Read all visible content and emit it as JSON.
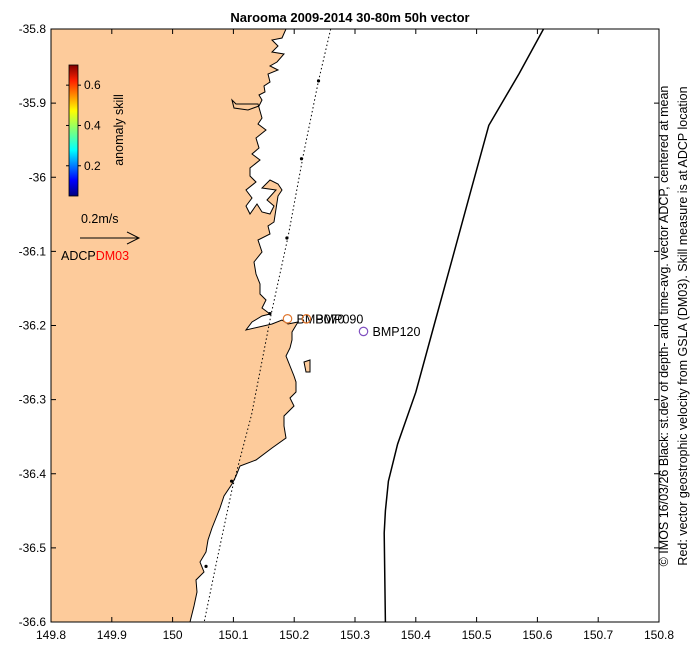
{
  "chart_data": {
    "type": "map",
    "title": "Narooma 2009-2014 30-80m 50h vector",
    "x_ticks": [
      "149.8",
      "149.9",
      "150",
      "150.1",
      "150.2",
      "150.3",
      "150.4",
      "150.5",
      "150.6",
      "150.7",
      "150.8"
    ],
    "y_ticks": [
      "-35.8",
      "-35.9",
      "-36",
      "-36.1",
      "-36.2",
      "-36.3",
      "-36.4",
      "-36.5",
      "-36.6"
    ],
    "xlim": [
      149.8,
      150.8
    ],
    "ylim": [
      -36.6,
      -35.8
    ],
    "colorbar": {
      "label": "anomaly skill",
      "ticks": [
        "0.6",
        "0.4",
        "0.2"
      ],
      "tick_values": [
        0.6,
        0.4,
        0.2
      ],
      "range": [
        0.05,
        0.7
      ]
    },
    "scale_arrow": {
      "label": "0.2m/s"
    },
    "legend": {
      "adcp": "ADCP",
      "dm03": "DM03",
      "dm03_color": "#ff0000"
    },
    "stations": [
      {
        "name": "BMP070",
        "lon": 150.189,
        "lat": -36.191,
        "color": "#e07830"
      },
      {
        "name": "BMP090",
        "lon": 150.22,
        "lat": -36.191,
        "color": "#e07830"
      },
      {
        "name": "BMP120",
        "lon": 150.314,
        "lat": -36.208,
        "color": "#8050c0"
      }
    ],
    "side_text": [
      "© IMOS 16/03/26 Black: st.dev of depth- and time-avg. vector ADCP, centered at mean",
      "Red: vector geostrophic velocity from GSLA (DM03). Skill measure is at ADCP location"
    ],
    "land_color": "#fdcb9b",
    "contour": [
      [
        150.61,
        -35.8
      ],
      [
        150.57,
        -35.86
      ],
      [
        150.52,
        -35.93
      ],
      [
        150.49,
        -36.02
      ],
      [
        150.46,
        -36.11
      ],
      [
        150.43,
        -36.2
      ],
      [
        150.4,
        -36.29
      ],
      [
        150.37,
        -36.36
      ],
      [
        150.355,
        -36.41
      ],
      [
        150.35,
        -36.45
      ],
      [
        150.348,
        -36.48
      ],
      [
        150.35,
        -36.6
      ]
    ],
    "dotted_line": [
      [
        150.26,
        -35.8
      ],
      [
        150.24,
        -35.87
      ],
      [
        150.215,
        -35.97
      ],
      [
        150.19,
        -36.08
      ],
      [
        150.162,
        -36.185
      ],
      [
        150.13,
        -36.32
      ],
      [
        150.098,
        -36.42
      ],
      [
        150.072,
        -36.52
      ],
      [
        150.052,
        -36.6
      ]
    ],
    "dotted_markers": [
      [
        150.24,
        -35.87
      ],
      [
        150.212,
        -35.975
      ],
      [
        150.188,
        -36.082
      ],
      [
        150.16,
        -36.184
      ],
      [
        150.097,
        -36.41
      ],
      [
        150.055,
        -36.525
      ]
    ]
  }
}
